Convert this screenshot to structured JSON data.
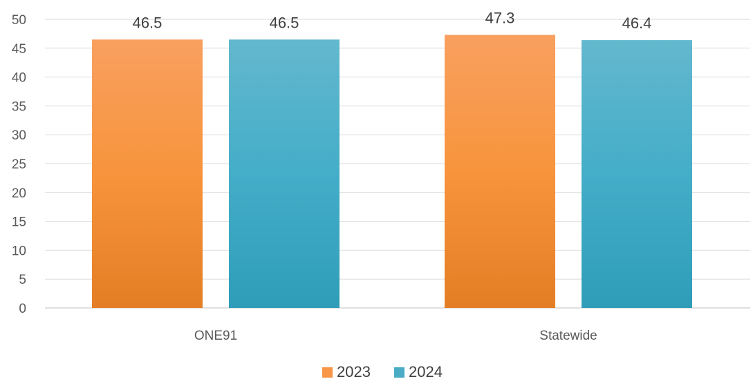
{
  "chart_data": {
    "type": "bar",
    "categories": [
      "ONE91",
      "Statewide"
    ],
    "series": [
      {
        "name": "2023",
        "values": [
          46.5,
          47.3
        ],
        "color": "#F79646"
      },
      {
        "name": "2024",
        "values": [
          46.5,
          46.4
        ],
        "color": "#4BACC6"
      }
    ],
    "ylim": [
      0,
      50
    ],
    "yticks": [
      0,
      5,
      10,
      15,
      20,
      25,
      30,
      35,
      40,
      45,
      50
    ],
    "grid": true,
    "legend": "bottom-center",
    "data_labels": true
  }
}
